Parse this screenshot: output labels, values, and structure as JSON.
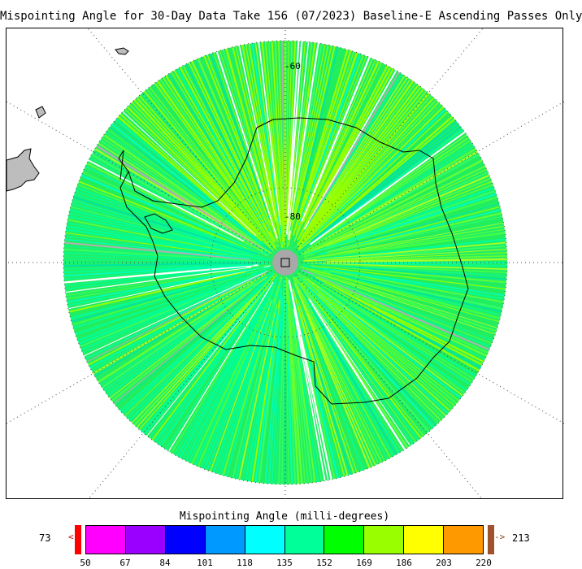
{
  "title": "Mispointing Angle for 30-Day Data Take 156 (07/2023) Baseline-E Ascending Passes Only",
  "map": {
    "lat_label_outer": "-60",
    "lat_label_inner": "-80",
    "colors": {
      "land": "#bdbdbd",
      "coast": "#000000",
      "grid": "#555555",
      "pole_hole": "#a8a8a8",
      "highlight_lines": "#b0b0b0"
    }
  },
  "colorbar": {
    "title": "Mispointing Angle (milli-degrees)",
    "min_label": "73",
    "max_label": "213",
    "under_arrow": "<",
    "over_arrow": "->",
    "ticks": [
      "50",
      "67",
      "84",
      "101",
      "118",
      "135",
      "152",
      "169",
      "186",
      "203",
      "220"
    ],
    "colors": [
      "#ff00ff",
      "#9900ff",
      "#0000ff",
      "#0099ff",
      "#00ffff",
      "#00ff99",
      "#00ff00",
      "#99ff00",
      "#ffff00",
      "#ff9900"
    ],
    "under_color": "#ff0000",
    "over_color": "#a0522d"
  }
}
